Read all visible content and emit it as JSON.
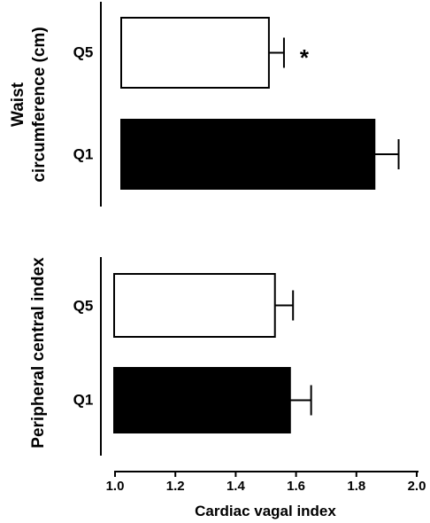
{
  "chart_data": [
    {
      "type": "bar",
      "orientation": "horizontal",
      "ylabel_lines": [
        "Waist",
        "circumference (cm)"
      ],
      "categories": [
        "Q5",
        "Q1"
      ],
      "values": [
        1.51,
        1.86
      ],
      "errors": [
        0.05,
        0.08
      ],
      "bar_colors": [
        "#ffffff",
        "#000000"
      ],
      "significance": [
        "*",
        ""
      ]
    },
    {
      "type": "bar",
      "orientation": "horizontal",
      "ylabel_lines": [
        "Peripheral central index"
      ],
      "categories": [
        "Q5",
        "Q1"
      ],
      "values": [
        1.53,
        1.58
      ],
      "errors": [
        0.06,
        0.07
      ],
      "bar_colors": [
        "#ffffff",
        "#000000"
      ],
      "significance": [
        "",
        ""
      ]
    }
  ],
  "x_axis": {
    "label": "Cardiac vagal index",
    "ticks": [
      "1.0",
      "1.2",
      "1.4",
      "1.6",
      "1.8",
      "2.0"
    ],
    "min": 1.0,
    "max": 2.0
  }
}
